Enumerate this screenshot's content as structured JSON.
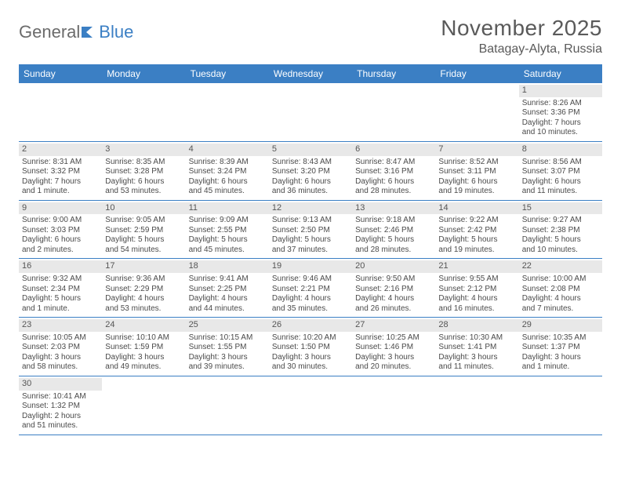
{
  "logo": {
    "part1": "General",
    "part2": "Blue"
  },
  "header": {
    "title": "November 2025",
    "location": "Batagay-Alyta, Russia"
  },
  "styling": {
    "header_bg": "#3b7fc4",
    "daynum_bg": "#e8e8e8",
    "border_color": "#3b7fc4",
    "text_color": "#4a4a4a",
    "title_fontsize": 28,
    "location_fontsize": 16,
    "weekday_fontsize": 12,
    "cell_fontsize": 10
  },
  "weekdays": [
    "Sunday",
    "Monday",
    "Tuesday",
    "Wednesday",
    "Thursday",
    "Friday",
    "Saturday"
  ],
  "weeks": [
    [
      {
        "n": "",
        "sr": "",
        "ss": "",
        "dl1": "",
        "dl2": ""
      },
      {
        "n": "",
        "sr": "",
        "ss": "",
        "dl1": "",
        "dl2": ""
      },
      {
        "n": "",
        "sr": "",
        "ss": "",
        "dl1": "",
        "dl2": ""
      },
      {
        "n": "",
        "sr": "",
        "ss": "",
        "dl1": "",
        "dl2": ""
      },
      {
        "n": "",
        "sr": "",
        "ss": "",
        "dl1": "",
        "dl2": ""
      },
      {
        "n": "",
        "sr": "",
        "ss": "",
        "dl1": "",
        "dl2": ""
      },
      {
        "n": "1",
        "sr": "Sunrise: 8:26 AM",
        "ss": "Sunset: 3:36 PM",
        "dl1": "Daylight: 7 hours",
        "dl2": "and 10 minutes."
      }
    ],
    [
      {
        "n": "2",
        "sr": "Sunrise: 8:31 AM",
        "ss": "Sunset: 3:32 PM",
        "dl1": "Daylight: 7 hours",
        "dl2": "and 1 minute."
      },
      {
        "n": "3",
        "sr": "Sunrise: 8:35 AM",
        "ss": "Sunset: 3:28 PM",
        "dl1": "Daylight: 6 hours",
        "dl2": "and 53 minutes."
      },
      {
        "n": "4",
        "sr": "Sunrise: 8:39 AM",
        "ss": "Sunset: 3:24 PM",
        "dl1": "Daylight: 6 hours",
        "dl2": "and 45 minutes."
      },
      {
        "n": "5",
        "sr": "Sunrise: 8:43 AM",
        "ss": "Sunset: 3:20 PM",
        "dl1": "Daylight: 6 hours",
        "dl2": "and 36 minutes."
      },
      {
        "n": "6",
        "sr": "Sunrise: 8:47 AM",
        "ss": "Sunset: 3:16 PM",
        "dl1": "Daylight: 6 hours",
        "dl2": "and 28 minutes."
      },
      {
        "n": "7",
        "sr": "Sunrise: 8:52 AM",
        "ss": "Sunset: 3:11 PM",
        "dl1": "Daylight: 6 hours",
        "dl2": "and 19 minutes."
      },
      {
        "n": "8",
        "sr": "Sunrise: 8:56 AM",
        "ss": "Sunset: 3:07 PM",
        "dl1": "Daylight: 6 hours",
        "dl2": "and 11 minutes."
      }
    ],
    [
      {
        "n": "9",
        "sr": "Sunrise: 9:00 AM",
        "ss": "Sunset: 3:03 PM",
        "dl1": "Daylight: 6 hours",
        "dl2": "and 2 minutes."
      },
      {
        "n": "10",
        "sr": "Sunrise: 9:05 AM",
        "ss": "Sunset: 2:59 PM",
        "dl1": "Daylight: 5 hours",
        "dl2": "and 54 minutes."
      },
      {
        "n": "11",
        "sr": "Sunrise: 9:09 AM",
        "ss": "Sunset: 2:55 PM",
        "dl1": "Daylight: 5 hours",
        "dl2": "and 45 minutes."
      },
      {
        "n": "12",
        "sr": "Sunrise: 9:13 AM",
        "ss": "Sunset: 2:50 PM",
        "dl1": "Daylight: 5 hours",
        "dl2": "and 37 minutes."
      },
      {
        "n": "13",
        "sr": "Sunrise: 9:18 AM",
        "ss": "Sunset: 2:46 PM",
        "dl1": "Daylight: 5 hours",
        "dl2": "and 28 minutes."
      },
      {
        "n": "14",
        "sr": "Sunrise: 9:22 AM",
        "ss": "Sunset: 2:42 PM",
        "dl1": "Daylight: 5 hours",
        "dl2": "and 19 minutes."
      },
      {
        "n": "15",
        "sr": "Sunrise: 9:27 AM",
        "ss": "Sunset: 2:38 PM",
        "dl1": "Daylight: 5 hours",
        "dl2": "and 10 minutes."
      }
    ],
    [
      {
        "n": "16",
        "sr": "Sunrise: 9:32 AM",
        "ss": "Sunset: 2:34 PM",
        "dl1": "Daylight: 5 hours",
        "dl2": "and 1 minute."
      },
      {
        "n": "17",
        "sr": "Sunrise: 9:36 AM",
        "ss": "Sunset: 2:29 PM",
        "dl1": "Daylight: 4 hours",
        "dl2": "and 53 minutes."
      },
      {
        "n": "18",
        "sr": "Sunrise: 9:41 AM",
        "ss": "Sunset: 2:25 PM",
        "dl1": "Daylight: 4 hours",
        "dl2": "and 44 minutes."
      },
      {
        "n": "19",
        "sr": "Sunrise: 9:46 AM",
        "ss": "Sunset: 2:21 PM",
        "dl1": "Daylight: 4 hours",
        "dl2": "and 35 minutes."
      },
      {
        "n": "20",
        "sr": "Sunrise: 9:50 AM",
        "ss": "Sunset: 2:16 PM",
        "dl1": "Daylight: 4 hours",
        "dl2": "and 26 minutes."
      },
      {
        "n": "21",
        "sr": "Sunrise: 9:55 AM",
        "ss": "Sunset: 2:12 PM",
        "dl1": "Daylight: 4 hours",
        "dl2": "and 16 minutes."
      },
      {
        "n": "22",
        "sr": "Sunrise: 10:00 AM",
        "ss": "Sunset: 2:08 PM",
        "dl1": "Daylight: 4 hours",
        "dl2": "and 7 minutes."
      }
    ],
    [
      {
        "n": "23",
        "sr": "Sunrise: 10:05 AM",
        "ss": "Sunset: 2:03 PM",
        "dl1": "Daylight: 3 hours",
        "dl2": "and 58 minutes."
      },
      {
        "n": "24",
        "sr": "Sunrise: 10:10 AM",
        "ss": "Sunset: 1:59 PM",
        "dl1": "Daylight: 3 hours",
        "dl2": "and 49 minutes."
      },
      {
        "n": "25",
        "sr": "Sunrise: 10:15 AM",
        "ss": "Sunset: 1:55 PM",
        "dl1": "Daylight: 3 hours",
        "dl2": "and 39 minutes."
      },
      {
        "n": "26",
        "sr": "Sunrise: 10:20 AM",
        "ss": "Sunset: 1:50 PM",
        "dl1": "Daylight: 3 hours",
        "dl2": "and 30 minutes."
      },
      {
        "n": "27",
        "sr": "Sunrise: 10:25 AM",
        "ss": "Sunset: 1:46 PM",
        "dl1": "Daylight: 3 hours",
        "dl2": "and 20 minutes."
      },
      {
        "n": "28",
        "sr": "Sunrise: 10:30 AM",
        "ss": "Sunset: 1:41 PM",
        "dl1": "Daylight: 3 hours",
        "dl2": "and 11 minutes."
      },
      {
        "n": "29",
        "sr": "Sunrise: 10:35 AM",
        "ss": "Sunset: 1:37 PM",
        "dl1": "Daylight: 3 hours",
        "dl2": "and 1 minute."
      }
    ],
    [
      {
        "n": "30",
        "sr": "Sunrise: 10:41 AM",
        "ss": "Sunset: 1:32 PM",
        "dl1": "Daylight: 2 hours",
        "dl2": "and 51 minutes."
      },
      {
        "n": "",
        "sr": "",
        "ss": "",
        "dl1": "",
        "dl2": ""
      },
      {
        "n": "",
        "sr": "",
        "ss": "",
        "dl1": "",
        "dl2": ""
      },
      {
        "n": "",
        "sr": "",
        "ss": "",
        "dl1": "",
        "dl2": ""
      },
      {
        "n": "",
        "sr": "",
        "ss": "",
        "dl1": "",
        "dl2": ""
      },
      {
        "n": "",
        "sr": "",
        "ss": "",
        "dl1": "",
        "dl2": ""
      },
      {
        "n": "",
        "sr": "",
        "ss": "",
        "dl1": "",
        "dl2": ""
      }
    ]
  ]
}
